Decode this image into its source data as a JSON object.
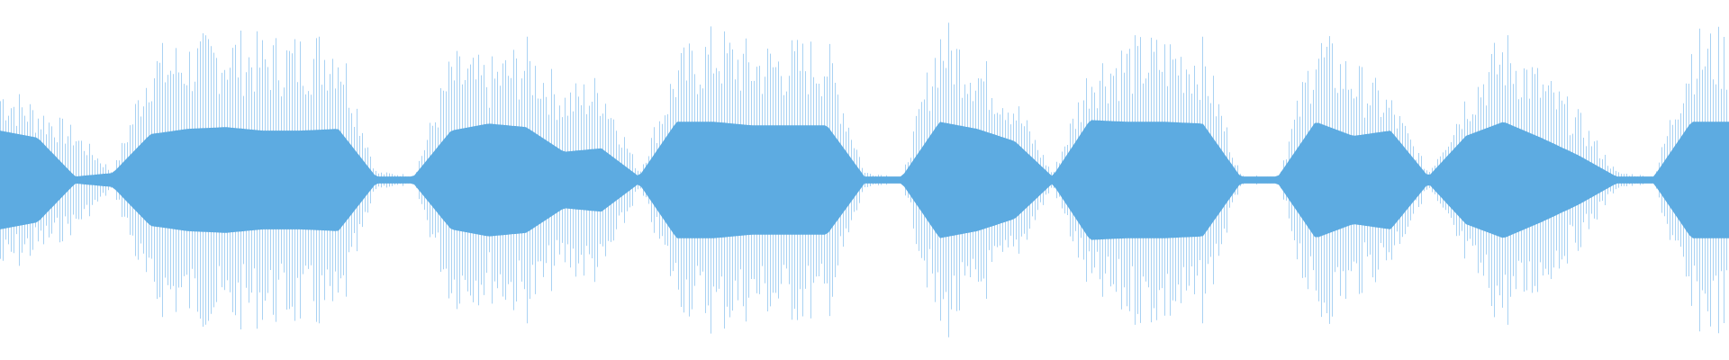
{
  "waveform": {
    "colors": {
      "background": "#ffffff",
      "peak": "#a9d2f3",
      "rms": "#5dabe1",
      "line": "#5dabe1"
    },
    "peak_amplitude": [
      0.58,
      0.45,
      0.3,
      0.05,
      0.78,
      0.82,
      0.88,
      0.84,
      0.85,
      0.9,
      0.05,
      0.03,
      0.75,
      0.7,
      0.82,
      0.55,
      0.62,
      0.05,
      0.74,
      0.9,
      0.8,
      0.82,
      0.83,
      0.05,
      0.02,
      0.96,
      0.75,
      0.5,
      0.04,
      0.72,
      0.83,
      0.85,
      0.82,
      0.03,
      0.02,
      0.9,
      0.7,
      0.5,
      0.05,
      0.54,
      0.88,
      0.65,
      0.4,
      0.05,
      0.02,
      0.88,
      0.88
    ],
    "rms_amplitude": [
      0.28,
      0.24,
      0.02,
      0.04,
      0.26,
      0.29,
      0.3,
      0.28,
      0.28,
      0.29,
      0.02,
      0.02,
      0.28,
      0.32,
      0.3,
      0.16,
      0.18,
      0.02,
      0.33,
      0.33,
      0.31,
      0.31,
      0.31,
      0.02,
      0.02,
      0.33,
      0.29,
      0.22,
      0.02,
      0.34,
      0.33,
      0.33,
      0.32,
      0.02,
      0.02,
      0.33,
      0.25,
      0.28,
      0.02,
      0.25,
      0.33,
      0.24,
      0.14,
      0.02,
      0.02,
      0.33,
      0.33
    ]
  }
}
